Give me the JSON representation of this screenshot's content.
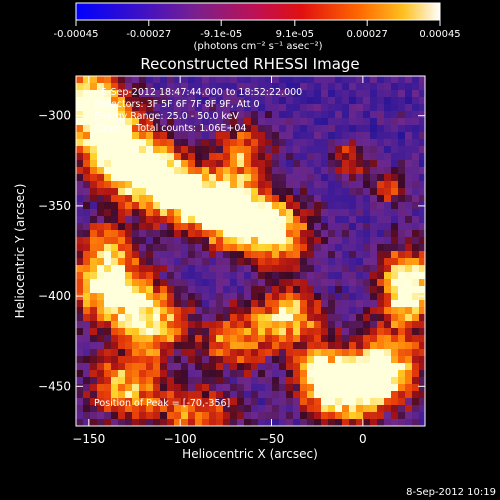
{
  "chart_data": {
    "type": "heatmap",
    "title": "Reconstructed RHESSI Image",
    "xlabel": "Heliocentric X (arcsec)",
    "ylabel": "Heliocentric Y (arcsec)",
    "xlim": [
      -157,
      34
    ],
    "ylim": [
      -472,
      -278
    ],
    "xticks": [
      -150,
      -100,
      -50,
      0
    ],
    "yticks": [
      -300,
      -350,
      -400,
      -450
    ],
    "colorbar": {
      "min": -0.00045,
      "max": 0.00045,
      "tick_values": [
        -0.00045,
        -0.00027,
        -9.1e-05,
        9.1e-05,
        0.00027,
        0.00045
      ],
      "tick_labels": [
        "-0.00045",
        "-0.00027",
        "-9.1e-05",
        "9.1e-05",
        "0.00027",
        "0.00045"
      ],
      "unit_label": "(photons cm⁻² s⁻¹ asec⁻²)",
      "colormap": [
        "#0000ff",
        "#5a1aa0",
        "#8a2a8a",
        "#d01010",
        "#ff7000",
        "#ffd020",
        "#ffffff"
      ]
    },
    "annotations": [
      "5-Sep-2012 18:47:44.000 to 18:52:22.000",
      "Detectors: 3F 5F 6F 7F 8F 9F, Att 0",
      "Energy Range: 25.0 - 50.0 keV",
      "Clean     Total counts: 1.06E+04"
    ],
    "peak_label": "Position of Peak = [-70,-356]",
    "peak": [
      -70,
      -356
    ],
    "bright_regions": [
      {
        "x": -70,
        "y": -356,
        "level": 1.0,
        "sx": 14,
        "sy": 12
      },
      {
        "x": -95,
        "y": -345,
        "level": 0.85,
        "sx": 16,
        "sy": 12
      },
      {
        "x": -120,
        "y": -330,
        "level": 0.85,
        "sx": 16,
        "sy": 14
      },
      {
        "x": -140,
        "y": -310,
        "level": 0.8,
        "sx": 14,
        "sy": 16
      },
      {
        "x": -150,
        "y": -290,
        "level": 0.7,
        "sx": 12,
        "sy": 12
      },
      {
        "x": -45,
        "y": -365,
        "level": 0.7,
        "sx": 14,
        "sy": 14
      },
      {
        "x": -65,
        "y": -320,
        "level": 0.6,
        "sx": 12,
        "sy": 12
      },
      {
        "x": -140,
        "y": -395,
        "level": 0.85,
        "sx": 16,
        "sy": 14
      },
      {
        "x": -115,
        "y": -415,
        "level": 0.7,
        "sx": 14,
        "sy": 14
      },
      {
        "x": 25,
        "y": -395,
        "level": 0.95,
        "sx": 12,
        "sy": 16
      },
      {
        "x": -40,
        "y": -410,
        "level": 0.7,
        "sx": 14,
        "sy": 12
      },
      {
        "x": -70,
        "y": -425,
        "level": 0.6,
        "sx": 14,
        "sy": 12
      },
      {
        "x": 10,
        "y": -440,
        "level": 0.85,
        "sx": 16,
        "sy": 14
      },
      {
        "x": -10,
        "y": -455,
        "level": 0.75,
        "sx": 16,
        "sy": 12
      },
      {
        "x": -130,
        "y": -450,
        "level": 0.65,
        "sx": 16,
        "sy": 14
      },
      {
        "x": -90,
        "y": -465,
        "level": 0.55,
        "sx": 18,
        "sy": 10
      },
      {
        "x": -25,
        "y": -440,
        "level": 0.6,
        "sx": 10,
        "sy": 10
      },
      {
        "x": -8,
        "y": -325,
        "level": 0.45,
        "sx": 8,
        "sy": 8
      },
      {
        "x": 15,
        "y": -340,
        "level": 0.4,
        "sx": 8,
        "sy": 8
      },
      {
        "x": -140,
        "y": -370,
        "level": 0.45,
        "sx": 10,
        "sy": 10
      }
    ]
  },
  "timestamp": "8-Sep-2012 10:19"
}
